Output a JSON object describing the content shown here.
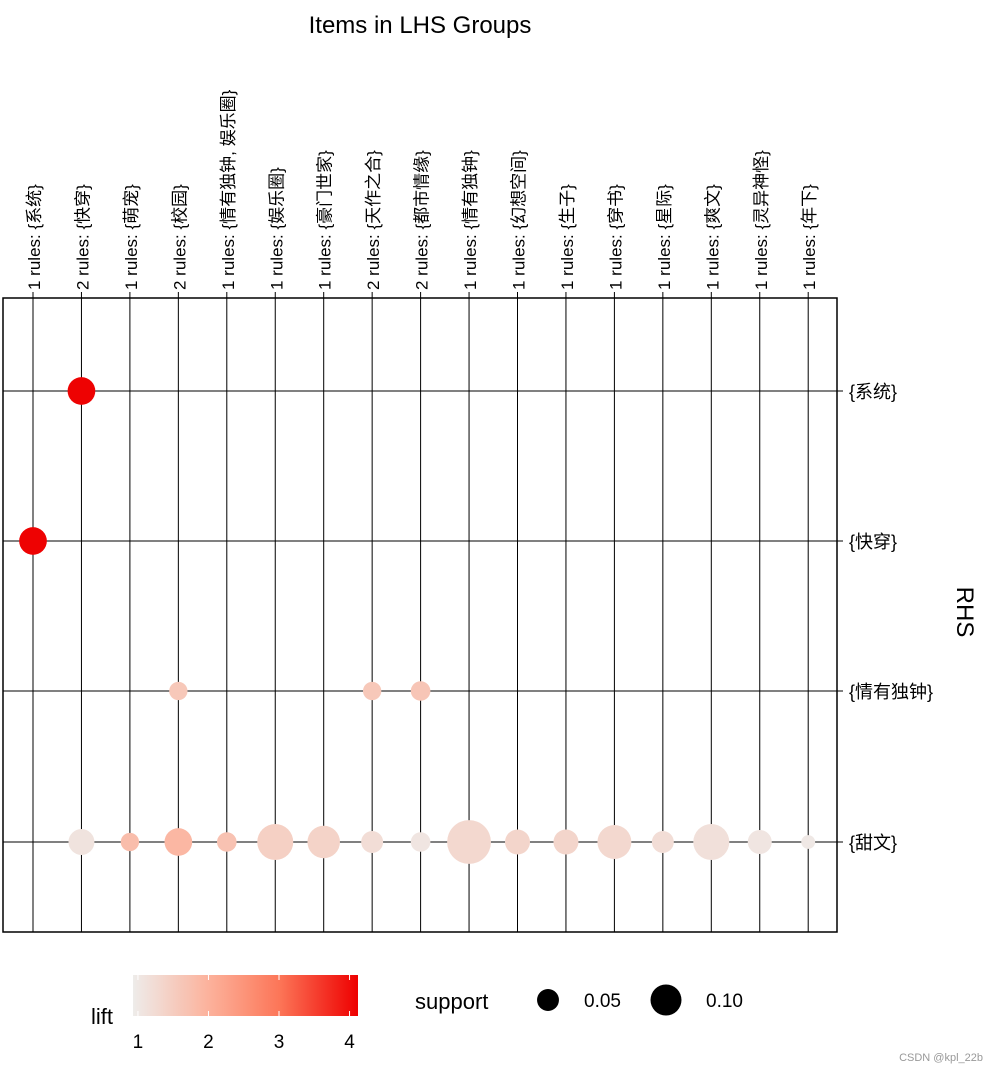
{
  "chart_data": {
    "type": "scatter",
    "subtype": "grouped-matrix",
    "title": "Items in LHS Groups",
    "ylabel": "RHS",
    "x_groups": [
      "1 rules: {系统}",
      "2 rules: {快穿}",
      "1 rules: {萌宠}",
      "2 rules: {校园}",
      "1 rules: {情有独钟, 娱乐圈}",
      "1 rules: {娱乐圈}",
      "1 rules: {豪门世家}",
      "2 rules: {天作之合}",
      "2 rules: {都市情缘}",
      "1 rules: {情有独钟}",
      "1 rules: {幻想空间}",
      "1 rules: {生子}",
      "1 rules: {穿书}",
      "1 rules: {星际}",
      "1 rules: {爽文}",
      "1 rules: {灵异神怪}",
      "1 rules: {年下}"
    ],
    "rhs": [
      "{系统}",
      "{快穿}",
      "{情有独钟}",
      "{甜文}"
    ],
    "points": [
      {
        "lhs": 1,
        "rhs": 0,
        "support": 0.08,
        "lift": 4.1
      },
      {
        "lhs": 0,
        "rhs": 1,
        "support": 0.08,
        "lift": 4.1
      },
      {
        "lhs": 3,
        "rhs": 2,
        "support": 0.035,
        "lift": 1.6
      },
      {
        "lhs": 7,
        "rhs": 2,
        "support": 0.035,
        "lift": 1.6
      },
      {
        "lhs": 8,
        "rhs": 2,
        "support": 0.04,
        "lift": 1.65
      },
      {
        "lhs": 1,
        "rhs": 3,
        "support": 0.07,
        "lift": 1.1
      },
      {
        "lhs": 2,
        "rhs": 3,
        "support": 0.035,
        "lift": 1.8
      },
      {
        "lhs": 3,
        "rhs": 3,
        "support": 0.08,
        "lift": 1.9
      },
      {
        "lhs": 4,
        "rhs": 3,
        "support": 0.04,
        "lift": 1.7
      },
      {
        "lhs": 5,
        "rhs": 3,
        "support": 0.135,
        "lift": 1.45
      },
      {
        "lhs": 6,
        "rhs": 3,
        "support": 0.11,
        "lift": 1.4
      },
      {
        "lhs": 7,
        "rhs": 3,
        "support": 0.05,
        "lift": 1.2
      },
      {
        "lhs": 8,
        "rhs": 3,
        "support": 0.04,
        "lift": 1.05
      },
      {
        "lhs": 9,
        "rhs": 3,
        "support": 0.2,
        "lift": 1.3
      },
      {
        "lhs": 10,
        "rhs": 3,
        "support": 0.065,
        "lift": 1.35
      },
      {
        "lhs": 11,
        "rhs": 3,
        "support": 0.065,
        "lift": 1.35
      },
      {
        "lhs": 12,
        "rhs": 3,
        "support": 0.12,
        "lift": 1.3
      },
      {
        "lhs": 13,
        "rhs": 3,
        "support": 0.05,
        "lift": 1.2
      },
      {
        "lhs": 14,
        "rhs": 3,
        "support": 0.135,
        "lift": 1.15
      },
      {
        "lhs": 15,
        "rhs": 3,
        "support": 0.06,
        "lift": 1.05
      },
      {
        "lhs": 16,
        "rhs": 3,
        "support": 0.02,
        "lift": 1.0
      }
    ],
    "legend": {
      "color": {
        "title": "lift",
        "ticks": [
          1,
          2,
          3,
          4
        ],
        "range": [
          0.93,
          4.12
        ],
        "low": "#EEEEEE",
        "high": "#EE0000"
      },
      "size": {
        "title": "support",
        "values": [
          0.05,
          0.1
        ],
        "labels": [
          "0.05",
          "0.10"
        ]
      },
      "placement": "bottom"
    },
    "grid": true
  },
  "watermark": "CSDN @kpl_22b"
}
